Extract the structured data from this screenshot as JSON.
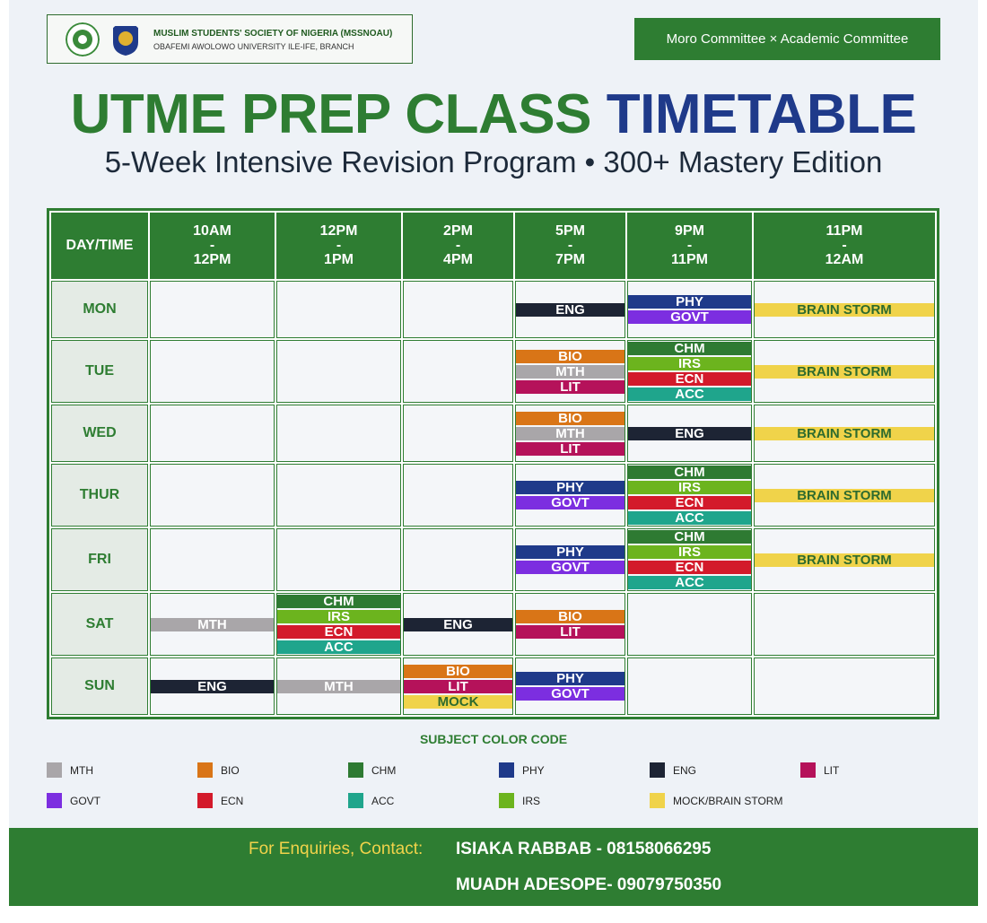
{
  "header": {
    "org_name": "MUSLIM STUDENTS' SOCIETY OF NIGERIA (MSSNOAU)",
    "org_branch": "OBAFEMI AWOLOWO UNIVERSITY ILE-IFE, BRANCH",
    "committee": "Moro Committee × Academic Committee",
    "title_a": "UTME PREP CLASS",
    "title_b": "TIMETABLE",
    "subtitle": "5-Week Intensive Revision Program • 300+ Mastery Edition"
  },
  "table": {
    "header_row": [
      "DAY/TIME",
      "10AM\n-\n12PM",
      "12PM\n-\n1PM",
      "2PM\n-\n4PM",
      "5PM\n-\n7PM",
      "9PM\n-\n11PM",
      "11PM\n-\n12AM"
    ],
    "rows": [
      {
        "day": "MON",
        "cells": [
          [],
          [],
          [],
          [
            {
              "text": "ENG",
              "color": "#1d2434"
            }
          ],
          [
            {
              "text": "PHY",
              "color": "#1f3a8a"
            },
            {
              "text": "GOVT",
              "color": "#7c2ee0"
            }
          ],
          [
            {
              "text": "BRAIN STORM",
              "color": "#f0d34a"
            }
          ]
        ]
      },
      {
        "day": "TUE",
        "cells": [
          [],
          [],
          [],
          [
            {
              "text": "BIO",
              "color": "#d97517"
            },
            {
              "text": "MTH",
              "color": "#a9a6a9"
            },
            {
              "text": "LIT",
              "color": "#b5125a"
            }
          ],
          [
            {
              "text": "CHM",
              "color": "#2e7a32"
            },
            {
              "text": "IRS",
              "color": "#6cb41e"
            },
            {
              "text": "ECN",
              "color": "#d31a2b"
            },
            {
              "text": "ACC",
              "color": "#1fa58c"
            }
          ],
          [
            {
              "text": "BRAIN STORM",
              "color": "#f0d34a"
            }
          ]
        ]
      },
      {
        "day": "WED",
        "cells": [
          [],
          [],
          [],
          [
            {
              "text": "BIO",
              "color": "#d97517"
            },
            {
              "text": "MTH",
              "color": "#a9a6a9"
            },
            {
              "text": "LIT",
              "color": "#b5125a"
            }
          ],
          [
            {
              "text": "ENG",
              "color": "#1d2434"
            }
          ],
          [
            {
              "text": "BRAIN STORM",
              "color": "#f0d34a"
            }
          ]
        ]
      },
      {
        "day": "THUR",
        "cells": [
          [],
          [],
          [],
          [
            {
              "text": "PHY",
              "color": "#1f3a8a"
            },
            {
              "text": "GOVT",
              "color": "#7c2ee0"
            }
          ],
          [
            {
              "text": "CHM",
              "color": "#2e7a32"
            },
            {
              "text": "IRS",
              "color": "#6cb41e"
            },
            {
              "text": "ECN",
              "color": "#d31a2b"
            },
            {
              "text": "ACC",
              "color": "#1fa58c"
            }
          ],
          [
            {
              "text": "BRAIN STORM",
              "color": "#f0d34a"
            }
          ]
        ]
      },
      {
        "day": "FRI",
        "cells": [
          [],
          [],
          [],
          [
            {
              "text": "PHY",
              "color": "#1f3a8a"
            },
            {
              "text": "GOVT",
              "color": "#7c2ee0"
            }
          ],
          [
            {
              "text": "CHM",
              "color": "#2e7a32"
            },
            {
              "text": "IRS",
              "color": "#6cb41e"
            },
            {
              "text": "ECN",
              "color": "#d31a2b"
            },
            {
              "text": "ACC",
              "color": "#1fa58c"
            }
          ],
          [
            {
              "text": "BRAIN STORM",
              "color": "#f0d34a"
            }
          ]
        ]
      },
      {
        "day": "SAT",
        "cells": [
          [
            {
              "text": "MTH",
              "color": "#a9a6a9"
            }
          ],
          [
            {
              "text": "CHM",
              "color": "#2e7a32"
            },
            {
              "text": "IRS",
              "color": "#6cb41e"
            },
            {
              "text": "ECN",
              "color": "#d31a2b"
            },
            {
              "text": "ACC",
              "color": "#1fa58c"
            }
          ],
          [
            {
              "text": "ENG",
              "color": "#1d2434"
            }
          ],
          [
            {
              "text": "BIO",
              "color": "#d97517"
            },
            {
              "text": "LIT",
              "color": "#b5125a"
            }
          ],
          [],
          []
        ]
      },
      {
        "day": "SUN",
        "cells": [
          [
            {
              "text": "ENG",
              "color": "#1d2434"
            }
          ],
          [
            {
              "text": "MTH",
              "color": "#a9a6a9"
            }
          ],
          [
            {
              "text": "BIO",
              "color": "#d97517"
            },
            {
              "text": "LIT",
              "color": "#b5125a"
            },
            {
              "text": "MOCK",
              "color": "#f0d34a"
            }
          ],
          [
            {
              "text": "PHY",
              "color": "#1f3a8a"
            },
            {
              "text": "GOVT",
              "color": "#7c2ee0"
            }
          ],
          [],
          []
        ]
      }
    ]
  },
  "legend": {
    "title": "SUBJECT COLOR CODE",
    "items": [
      {
        "label": "MTH",
        "color": "#a9a6a9"
      },
      {
        "label": "BIO",
        "color": "#d97517"
      },
      {
        "label": "CHM",
        "color": "#2e7a32"
      },
      {
        "label": "PHY",
        "color": "#1f3a8a"
      },
      {
        "label": "ENG",
        "color": "#1d2434"
      },
      {
        "label": "LIT",
        "color": "#b5125a"
      },
      {
        "label": "GOVT",
        "color": "#7c2ee0"
      },
      {
        "label": "ECN",
        "color": "#d31a2b"
      },
      {
        "label": "ACC",
        "color": "#1fa58c"
      },
      {
        "label": "IRS",
        "color": "#6cb41e"
      },
      {
        "label": "MOCK/BRAIN STORM",
        "color": "#f0d34a"
      }
    ]
  },
  "footer": {
    "prompt": "For Enquiries, Contact:",
    "contacts": [
      "ISIAKA RABBAB - 08158066295",
      "MUADH ADESOPE- 09079750350"
    ]
  }
}
